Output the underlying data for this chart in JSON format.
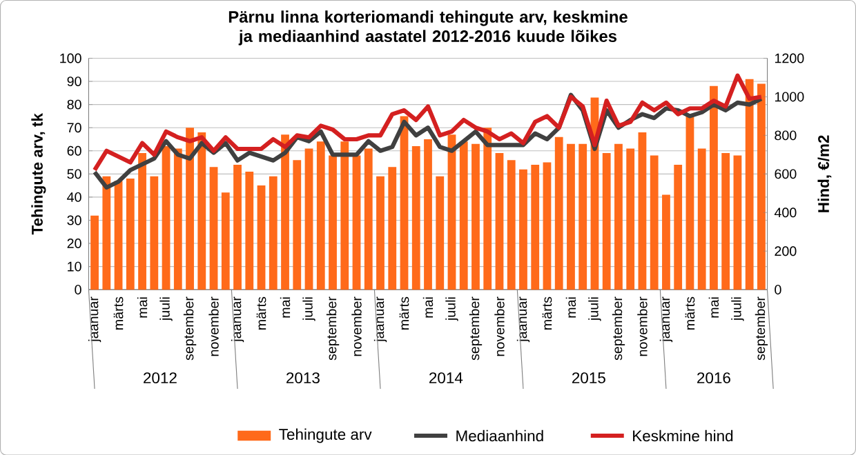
{
  "chart_data": {
    "type": "bar",
    "title": "Pärnu linna korteriomandi tehingute arv, keskmine ja mediaanhind aastatel 2012-2016 kuude lõikes",
    "ylabel": "Tehingute arv, tk",
    "y2label": "Hind, €/m2",
    "categories": [
      "jaanuar",
      null,
      "märts",
      null,
      "mai",
      null,
      "juuli",
      null,
      "september",
      null,
      "november",
      null,
      "jaanuar",
      null,
      "märts",
      null,
      "mai",
      null,
      "juuli",
      null,
      "september",
      null,
      "november",
      null,
      "jaanuar",
      null,
      "märts",
      null,
      "mai",
      null,
      "juuli",
      null,
      "september",
      null,
      "november",
      null,
      "jaanuar",
      null,
      "märts",
      null,
      "mai",
      null,
      "juuli",
      null,
      "september",
      null,
      "november",
      null,
      "jaanuar",
      null,
      "märts",
      null,
      "mai",
      null,
      "juuli",
      null,
      "september"
    ],
    "annotations": [
      "2012",
      "2013",
      "2014",
      "2015",
      "2016"
    ],
    "series": [
      {
        "name": "Tehingute arv",
        "color": "#ff6a1a",
        "values": [
          32,
          49,
          47,
          48,
          59,
          49,
          62,
          61,
          70,
          68,
          53,
          42,
          54,
          51,
          45,
          49,
          67,
          56,
          61,
          64,
          58,
          64,
          58,
          61,
          49,
          53,
          75,
          62,
          65,
          49,
          67,
          64,
          63,
          70,
          59,
          56,
          52,
          54,
          55,
          66,
          63,
          63,
          83,
          59,
          63,
          61,
          68,
          58,
          41,
          54,
          76,
          61,
          88,
          59,
          58,
          91,
          89
        ]
      },
      {
        "name": "Mediaanhind",
        "type": "line",
        "axis": "y2",
        "color": "#404040",
        "values": [
          610,
          530,
          560,
          620,
          650,
          680,
          770,
          700,
          680,
          760,
          710,
          760,
          670,
          710,
          690,
          670,
          710,
          790,
          770,
          820,
          700,
          700,
          700,
          770,
          720,
          740,
          870,
          800,
          840,
          740,
          720,
          770,
          820,
          750,
          750,
          750,
          750,
          810,
          780,
          840,
          1010,
          930,
          730,
          930,
          840,
          880,
          910,
          890,
          940,
          930,
          900,
          920,
          960,
          930,
          970,
          960,
          990
        ]
      },
      {
        "name": "Keskmine hind",
        "type": "line",
        "axis": "y2",
        "color": "#d42020",
        "values": [
          620,
          720,
          690,
          660,
          760,
          700,
          820,
          790,
          770,
          790,
          720,
          790,
          730,
          730,
          730,
          780,
          740,
          800,
          790,
          850,
          830,
          780,
          780,
          800,
          800,
          910,
          930,
          880,
          950,
          800,
          820,
          880,
          840,
          820,
          780,
          810,
          760,
          870,
          900,
          840,
          1000,
          950,
          750,
          980,
          850,
          870,
          970,
          930,
          970,
          910,
          940,
          940,
          980,
          950,
          1110,
          990,
          1000
        ]
      }
    ],
    "ylim": [
      0,
      100
    ],
    "yticks": [
      0,
      10,
      20,
      30,
      40,
      50,
      60,
      70,
      80,
      90,
      100
    ],
    "y2lim": [
      0,
      1200
    ],
    "y2ticks": [
      0,
      200,
      400,
      600,
      800,
      1000,
      1200
    ],
    "grid": "y",
    "legend": "bottom"
  }
}
